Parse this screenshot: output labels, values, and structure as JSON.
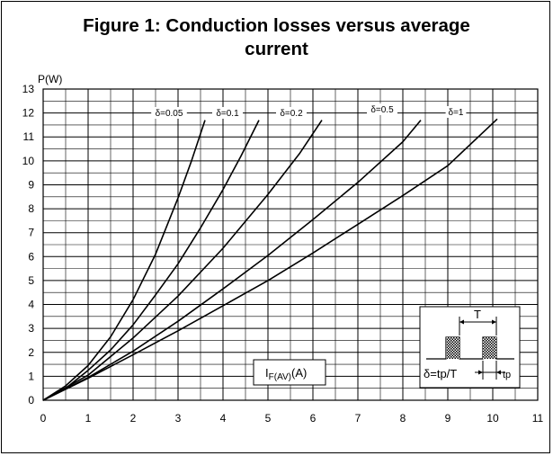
{
  "chart_data": {
    "type": "line",
    "title_lines": [
      "Figure 1: Conduction losses versus average",
      "current"
    ],
    "ylabel": "P(W)",
    "xlabel_main": "I",
    "xlabel_sub": "F(AV)",
    "xlabel_unit": "(A)",
    "xlim": [
      0,
      11
    ],
    "ylim": [
      0,
      13
    ],
    "x_ticks": [
      "0",
      "1",
      "2",
      "3",
      "4",
      "5",
      "6",
      "7",
      "8",
      "9",
      "10",
      "11"
    ],
    "y_ticks": [
      "0",
      "1",
      "2",
      "3",
      "4",
      "5",
      "6",
      "7",
      "8",
      "9",
      "10",
      "11",
      "12",
      "13"
    ],
    "grid": true,
    "series": [
      {
        "name": "δ=0.05",
        "x": [
          0,
          0.5,
          1,
          1.5,
          2,
          2.5,
          3,
          3.3,
          3.6
        ],
        "y": [
          0,
          0.6,
          1.45,
          2.65,
          4.2,
          6.1,
          8.45,
          10.0,
          11.7
        ]
      },
      {
        "name": "δ=0.1",
        "x": [
          0,
          0.5,
          1,
          1.5,
          2,
          2.5,
          3,
          3.5,
          4,
          4.4,
          4.8
        ],
        "y": [
          0,
          0.5,
          1.25,
          2.1,
          3.15,
          4.4,
          5.7,
          7.2,
          8.8,
          10.2,
          11.7
        ]
      },
      {
        "name": "δ=0.2",
        "x": [
          0,
          1,
          2,
          3,
          4,
          5,
          5.7,
          6.2
        ],
        "y": [
          0,
          1.05,
          2.6,
          4.35,
          6.35,
          8.6,
          10.3,
          11.7
        ]
      },
      {
        "name": "δ=0.5",
        "x": [
          0,
          1,
          2,
          3,
          4,
          5,
          6,
          7,
          8,
          8.4
        ],
        "y": [
          0,
          0.95,
          2.05,
          3.3,
          4.65,
          6.05,
          7.55,
          9.1,
          10.8,
          11.7
        ]
      },
      {
        "name": "δ=1",
        "x": [
          0,
          1,
          2,
          3,
          4,
          5,
          6,
          7,
          8,
          9,
          10.1
        ],
        "y": [
          0,
          0.92,
          1.9,
          2.9,
          3.95,
          5.0,
          6.15,
          7.35,
          8.55,
          9.8,
          11.75
        ]
      }
    ]
  },
  "inset": {
    "period_label": "T",
    "duty_label": "δ=tp/T",
    "tp_label": "tp"
  }
}
